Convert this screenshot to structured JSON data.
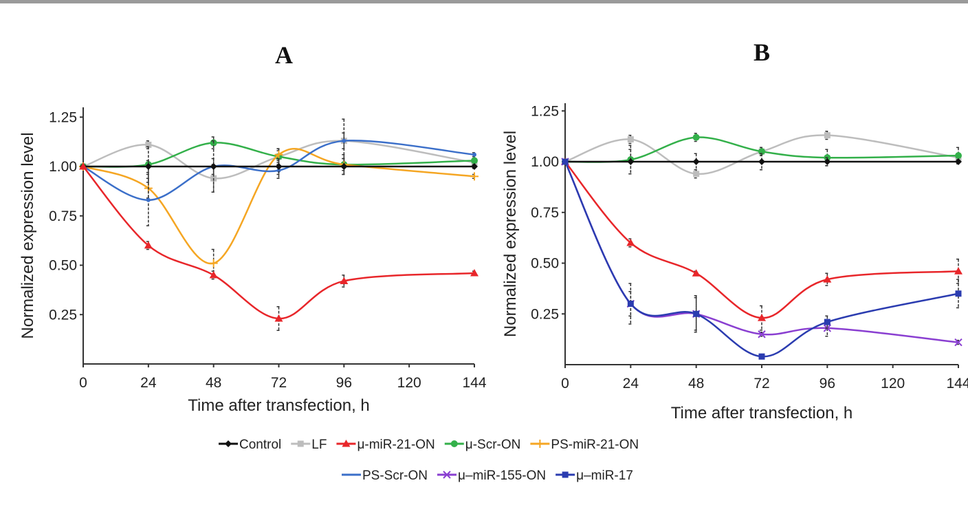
{
  "chart_data": [
    {
      "type": "line",
      "title": "A",
      "xlabel": "Time after transfection, h",
      "ylabel": "Normalized expression level",
      "x": [
        0,
        24,
        48,
        72,
        96,
        144
      ],
      "xticks": [
        "0",
        "24",
        "48",
        "72",
        "96",
        "120",
        "144"
      ],
      "yticks": [
        "0.25",
        "0.50",
        "0.75",
        "1.00",
        "1.25"
      ],
      "xlim": [
        0,
        144
      ],
      "ylim": [
        0,
        1.3
      ],
      "grid": false,
      "series": [
        {
          "name": "LF",
          "color": "#bdbdbd",
          "marker": "square",
          "values": [
            1,
            1.11,
            0.94,
            1.05,
            1.13,
            1.02
          ],
          "err": [
            0,
            0.02,
            0.07,
            0.04,
            0.11,
            0.02
          ]
        },
        {
          "name": "μ-Scr-ON",
          "color": "#33b04a",
          "marker": "circle",
          "values": [
            1,
            1.01,
            1.12,
            1.05,
            1.01,
            1.03
          ],
          "err": [
            0,
            0.09,
            0.03,
            0.03,
            0.05,
            0.01
          ]
        },
        {
          "name": "PS-miR-21-ON",
          "color": "#f5a623",
          "marker": "plus",
          "values": [
            1,
            0.89,
            0.51,
            1.06,
            1.01,
            0.95
          ],
          "err": [
            0,
            0.05,
            0.07,
            0.03,
            0.03,
            0.01
          ]
        },
        {
          "name": "PS-Scr-ON",
          "color": "#3b6fc9",
          "marker": "none",
          "values": [
            1,
            0.83,
            1.0,
            0.98,
            1.13,
            1.06
          ],
          "err": [
            0,
            0.13,
            0.04,
            0.04,
            0.04,
            0.01
          ]
        },
        {
          "name": "Control",
          "color": "#111111",
          "marker": "diamond",
          "values": [
            1,
            1,
            1,
            1,
            1,
            1
          ],
          "err": [
            0,
            0.03,
            0.13,
            0.04,
            0.04,
            0.01
          ]
        },
        {
          "name": "μ-miR-21-ON",
          "color": "#e8262a",
          "marker": "triangle",
          "values": [
            1,
            0.6,
            0.45,
            0.23,
            0.42,
            0.46
          ],
          "err": [
            0,
            0.02,
            0.02,
            0.06,
            0.03,
            0.01
          ]
        }
      ]
    },
    {
      "type": "line",
      "title": "B",
      "xlabel": "Time after transfection, h",
      "ylabel": "Normalized expression level",
      "x": [
        0,
        24,
        48,
        72,
        96,
        144
      ],
      "xticks": [
        "0",
        "24",
        "48",
        "72",
        "96",
        "120",
        "144"
      ],
      "yticks": [
        "0.25",
        "0.50",
        "0.75",
        "1.00",
        "1.25"
      ],
      "xlim": [
        0,
        144
      ],
      "ylim": [
        0,
        1.3
      ],
      "grid": false,
      "series": [
        {
          "name": "LF",
          "color": "#bdbdbd",
          "marker": "square",
          "values": [
            1,
            1.11,
            0.94,
            1.05,
            1.13,
            1.02
          ],
          "err": [
            0,
            0.02,
            0.02,
            0.02,
            0.02,
            0.02
          ]
        },
        {
          "name": "μ-Scr-ON",
          "color": "#33b04a",
          "marker": "circle",
          "values": [
            1,
            1.01,
            1.12,
            1.05,
            1.02,
            1.03
          ],
          "err": [
            0,
            0.07,
            0.02,
            0.02,
            0.04,
            0.04
          ]
        },
        {
          "name": "Control",
          "color": "#111111",
          "marker": "diamond",
          "values": [
            1,
            1,
            1,
            1,
            1,
            1
          ],
          "err": [
            0,
            0.06,
            0.04,
            0.04,
            0.02,
            0.01
          ]
        },
        {
          "name": "μ-miR-21-ON",
          "color": "#e8262a",
          "marker": "triangle",
          "values": [
            1,
            0.6,
            0.45,
            0.23,
            0.42,
            0.46
          ],
          "err": [
            0,
            0.02,
            0.01,
            0.06,
            0.03,
            0.06
          ]
        },
        {
          "name": "μ-miR-155-ON",
          "color": "#8a3fd1",
          "marker": "cross",
          "values": [
            1,
            0.3,
            0.25,
            0.15,
            0.18,
            0.11
          ],
          "err": [
            0,
            0.06,
            0.09,
            0.01,
            0.04,
            0.01
          ]
        },
        {
          "name": "μ-miR-17",
          "color": "#2b3cb0",
          "marker": "square",
          "values": [
            1,
            0.3,
            0.25,
            0.04,
            0.21,
            0.35
          ],
          "err": [
            0,
            0.1,
            0.08,
            0.01,
            0.03,
            0.07
          ]
        }
      ]
    }
  ],
  "legend": {
    "placement": "bottom",
    "rows": [
      [
        {
          "label": "Control",
          "color": "#111111",
          "marker": "diamond"
        },
        {
          "label": "LF",
          "color": "#bdbdbd",
          "marker": "square"
        },
        {
          "label": "μ-miR-21-ON",
          "color": "#e8262a",
          "marker": "triangle"
        },
        {
          "label": "μ-Scr-ON",
          "color": "#33b04a",
          "marker": "circle"
        },
        {
          "label": "PS-miR-21-ON",
          "color": "#f5a623",
          "marker": "plus"
        }
      ],
      [
        {
          "label": "PS-Scr-ON",
          "color": "#3b6fc9",
          "marker": "none"
        },
        {
          "label": "μ–miR-155-ON",
          "color": "#8a3fd1",
          "marker": "cross"
        },
        {
          "label": "μ–miR-17",
          "color": "#2b3cb0",
          "marker": "square"
        }
      ]
    ]
  }
}
